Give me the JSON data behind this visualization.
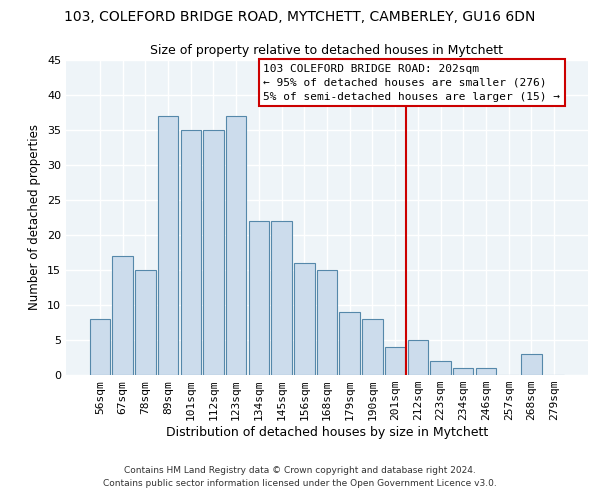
{
  "title1": "103, COLEFORD BRIDGE ROAD, MYTCHETT, CAMBERLEY, GU16 6DN",
  "title2": "Size of property relative to detached houses in Mytchett",
  "xlabel": "Distribution of detached houses by size in Mytchett",
  "ylabel": "Number of detached properties",
  "bar_labels": [
    "56sqm",
    "67sqm",
    "78sqm",
    "89sqm",
    "101sqm",
    "112sqm",
    "123sqm",
    "134sqm",
    "145sqm",
    "156sqm",
    "168sqm",
    "179sqm",
    "190sqm",
    "201sqm",
    "212sqm",
    "223sqm",
    "234sqm",
    "246sqm",
    "257sqm",
    "268sqm",
    "279sqm"
  ],
  "bar_values": [
    8,
    17,
    15,
    37,
    35,
    35,
    37,
    22,
    22,
    16,
    15,
    9,
    8,
    4,
    5,
    2,
    1,
    1,
    0,
    3,
    0
  ],
  "bar_color": "#ccdcec",
  "bar_edge_color": "#5588aa",
  "vline_color": "#cc0000",
  "annotation_title": "103 COLEFORD BRIDGE ROAD: 202sqm",
  "annotation_line1": "← 95% of detached houses are smaller (276)",
  "annotation_line2": "5% of semi-detached houses are larger (15) →",
  "annotation_box_color": "#ffffff",
  "annotation_box_edge": "#cc0000",
  "ylim": [
    0,
    45
  ],
  "yticks": [
    0,
    5,
    10,
    15,
    20,
    25,
    30,
    35,
    40,
    45
  ],
  "footer1": "Contains HM Land Registry data © Crown copyright and database right 2024.",
  "footer2": "Contains public sector information licensed under the Open Government Licence v3.0.",
  "bg_color": "#ffffff",
  "plot_bg_color": "#eef4f8"
}
